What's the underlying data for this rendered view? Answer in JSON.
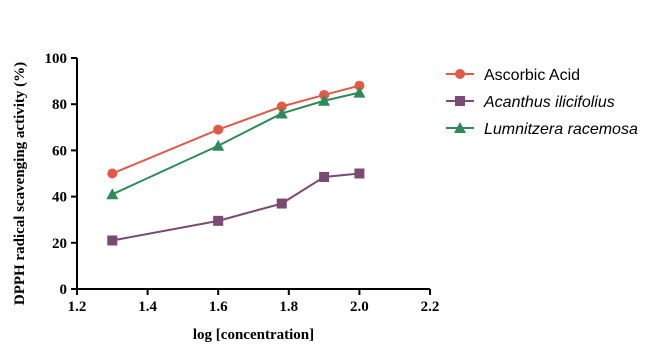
{
  "chart_data": {
    "type": "line",
    "xlabel": "log [concentration]",
    "ylabel": "DPPH radical scavenging activity (%)",
    "xlim": [
      1.2,
      2.2
    ],
    "ylim": [
      0,
      100
    ],
    "xticks": [
      "1.2",
      "1.4",
      "1.6",
      "1.8",
      "2.0",
      "2.2"
    ],
    "yticks": [
      "0",
      "20",
      "40",
      "60",
      "80",
      "100"
    ],
    "grid": false,
    "legend_position": "right",
    "series": [
      {
        "name": "Ascorbic Acid",
        "italic": false,
        "color": "#e05a47",
        "marker": "circle",
        "x": [
          1.3,
          1.6,
          1.78,
          1.9,
          2.0
        ],
        "y": [
          50,
          69,
          79,
          84,
          88
        ]
      },
      {
        "name": "Acanthus ilicifolius",
        "italic": true,
        "color": "#7b4a72",
        "marker": "square",
        "x": [
          1.3,
          1.6,
          1.78,
          1.9,
          2.0
        ],
        "y": [
          21,
          29.5,
          37,
          48.5,
          50
        ]
      },
      {
        "name": "Lumnitzera racemosa",
        "italic": true,
        "color": "#2e8b57",
        "marker": "triangle",
        "x": [
          1.3,
          1.6,
          1.78,
          1.9,
          2.0
        ],
        "y": [
          41,
          62,
          76,
          81.5,
          85
        ]
      }
    ]
  }
}
